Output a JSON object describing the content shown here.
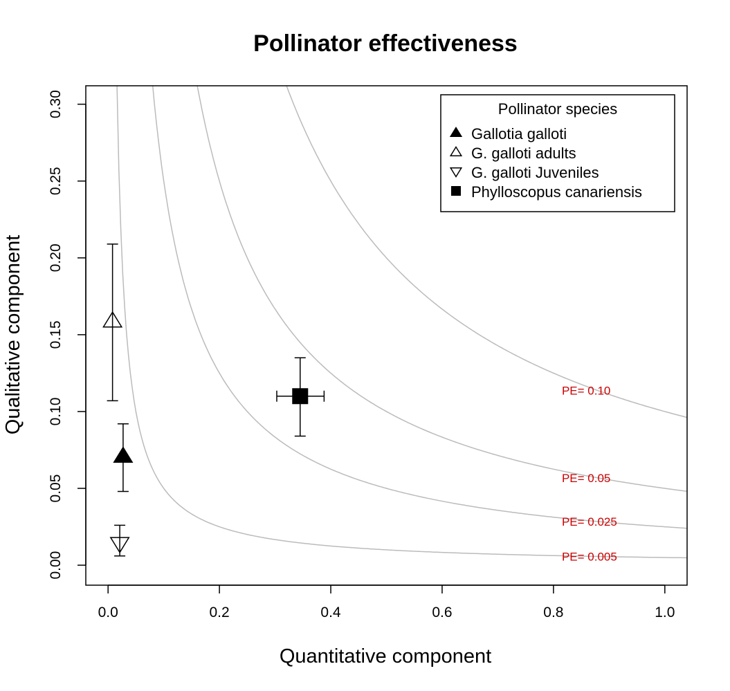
{
  "chart_data": {
    "type": "scatter",
    "title": "Pollinator effectiveness",
    "xlabel": "Quantitative component",
    "ylabel": "Qualitative component",
    "xlim": [
      -0.04,
      1.04
    ],
    "ylim": [
      -0.013,
      0.312
    ],
    "x_ticks": [
      0.0,
      0.2,
      0.4,
      0.6,
      0.8,
      1.0
    ],
    "x_tick_labels": [
      "0.0",
      "0.2",
      "0.4",
      "0.6",
      "0.8",
      "1.0"
    ],
    "y_ticks": [
      0.0,
      0.05,
      0.1,
      0.15,
      0.2,
      0.25,
      0.3
    ],
    "y_tick_labels": [
      "0.00",
      "0.05",
      "0.10",
      "0.15",
      "0.20",
      "0.25",
      "0.30"
    ],
    "grid": false,
    "legend": {
      "title": "Pollinator species",
      "position": "top-right"
    },
    "series": [
      {
        "name": "Gallotia galloti",
        "marker": "filled-triangle-up",
        "x": 0.027,
        "y": 0.071,
        "yerr": [
          0.048,
          0.092
        ]
      },
      {
        "name": "G. galloti adults",
        "marker": "open-triangle-up",
        "x": 0.008,
        "y": 0.159,
        "yerr": [
          0.107,
          0.209
        ]
      },
      {
        "name": "G. galloti Juveniles",
        "marker": "open-triangle-down",
        "x": 0.021,
        "y": 0.014,
        "yerr": [
          0.006,
          0.026
        ]
      },
      {
        "name": "Phylloscopus canariensis",
        "marker": "filled-square",
        "x": 0.345,
        "y": 0.11,
        "xerr": [
          0.303,
          0.388
        ],
        "yerr": [
          0.084,
          0.135
        ]
      }
    ],
    "isoclines": [
      {
        "pe": 0.1,
        "label": "PE= 0.10"
      },
      {
        "pe": 0.05,
        "label": "PE= 0.05"
      },
      {
        "pe": 0.025,
        "label": "PE= 0.025"
      },
      {
        "pe": 0.005,
        "label": "PE= 0.005"
      }
    ],
    "colors": {
      "isocline": "#bbbbbb",
      "isocline_label": "#cc0000",
      "axes": "#000000"
    }
  }
}
